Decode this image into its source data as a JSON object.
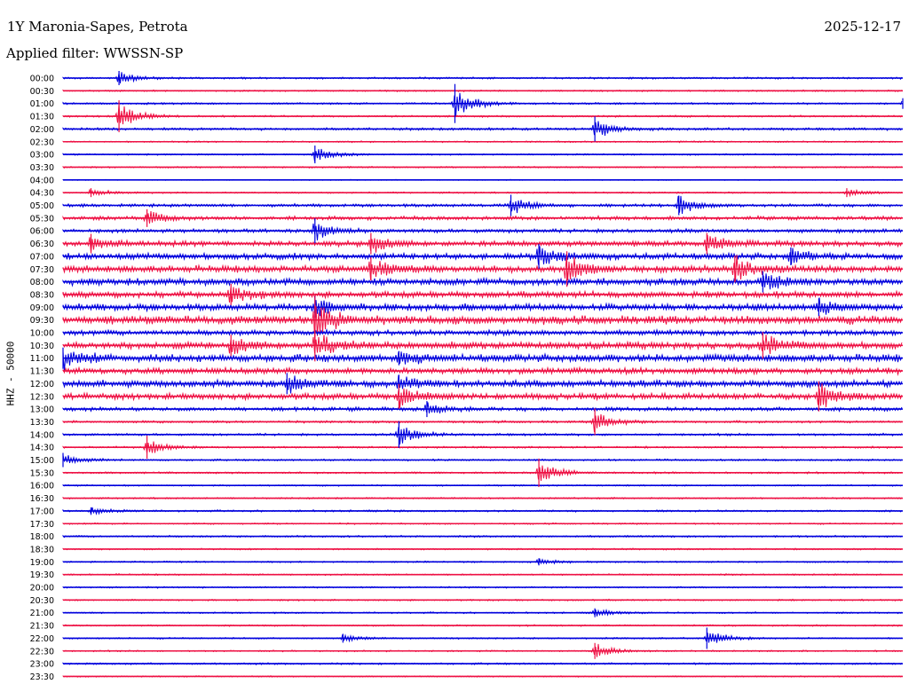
{
  "header": {
    "station": "1Y Maronia-Sapes, Petrota",
    "date": "2025-12-17",
    "filter": "Applied filter: WWSSN-SP"
  },
  "chart_data": {
    "type": "line",
    "subtype": "helicorder",
    "title": "1Y Maronia-Sapes, Petrota",
    "ylabel": "HHZ - 50000",
    "xlabel": "",
    "colors": {
      "even_row": "#0000dd",
      "odd_row": "#ee1144"
    },
    "row_labels": [
      "00:00",
      "00:30",
      "01:00",
      "01:30",
      "02:00",
      "02:30",
      "03:00",
      "03:30",
      "04:00",
      "04:30",
      "05:00",
      "05:30",
      "06:00",
      "06:30",
      "07:00",
      "07:30",
      "08:00",
      "08:30",
      "09:00",
      "09:30",
      "10:00",
      "10:30",
      "11:00",
      "11:30",
      "12:00",
      "12:30",
      "13:00",
      "13:30",
      "14:00",
      "14:30",
      "15:00",
      "15:30",
      "16:00",
      "16:30",
      "17:00",
      "17:30",
      "18:00",
      "18:30",
      "19:00",
      "19:30",
      "20:00",
      "20:30",
      "21:00",
      "21:30",
      "22:00",
      "22:30",
      "23:00",
      "23:30"
    ],
    "minutes_per_row": 30,
    "noise_level": [
      1.2,
      1.0,
      1.2,
      1.2,
      1.6,
      1.0,
      1.0,
      1.0,
      0.6,
      1.0,
      2.0,
      2.5,
      2.5,
      3.5,
      4.0,
      4.5,
      4.5,
      4.0,
      4.5,
      5.5,
      3.5,
      4.5,
      5.0,
      4.0,
      4.5,
      4.0,
      2.5,
      1.5,
      1.5,
      1.2,
      1.2,
      1.2,
      1.0,
      1.0,
      1.2,
      1.0,
      1.2,
      1.0,
      1.0,
      1.0,
      1.0,
      1.0,
      1.0,
      1.0,
      1.0,
      1.0,
      1.2,
      0.8
    ],
    "events": [
      {
        "row": 0,
        "minute": 2,
        "amplitude": 8
      },
      {
        "row": 2,
        "minute": 14,
        "amplitude": 22
      },
      {
        "row": 2,
        "minute": 30,
        "amplitude": 6
      },
      {
        "row": 3,
        "minute": 2,
        "amplitude": 18
      },
      {
        "row": 4,
        "minute": 19,
        "amplitude": 14
      },
      {
        "row": 6,
        "minute": 9,
        "amplitude": 10
      },
      {
        "row": 9,
        "minute": 1,
        "amplitude": 5
      },
      {
        "row": 9,
        "minute": 28,
        "amplitude": 5
      },
      {
        "row": 10,
        "minute": 16,
        "amplitude": 12
      },
      {
        "row": 10,
        "minute": 22,
        "amplitude": 11
      },
      {
        "row": 11,
        "minute": 3,
        "amplitude": 10
      },
      {
        "row": 12,
        "minute": 9,
        "amplitude": 14
      },
      {
        "row": 13,
        "minute": 1,
        "amplitude": 11
      },
      {
        "row": 13,
        "minute": 11,
        "amplitude": 12
      },
      {
        "row": 13,
        "minute": 23,
        "amplitude": 12
      },
      {
        "row": 14,
        "minute": 17,
        "amplitude": 14
      },
      {
        "row": 14,
        "minute": 26,
        "amplitude": 10
      },
      {
        "row": 15,
        "minute": 11,
        "amplitude": 13
      },
      {
        "row": 15,
        "minute": 18,
        "amplitude": 20
      },
      {
        "row": 15,
        "minute": 24,
        "amplitude": 15
      },
      {
        "row": 16,
        "minute": 25,
        "amplitude": 12
      },
      {
        "row": 17,
        "minute": 6,
        "amplitude": 12
      },
      {
        "row": 18,
        "minute": 9,
        "amplitude": 12
      },
      {
        "row": 18,
        "minute": 27,
        "amplitude": 10
      },
      {
        "row": 19,
        "minute": 9,
        "amplitude": 26
      },
      {
        "row": 21,
        "minute": 6,
        "amplitude": 12
      },
      {
        "row": 21,
        "minute": 9,
        "amplitude": 18
      },
      {
        "row": 21,
        "minute": 25,
        "amplitude": 15
      },
      {
        "row": 22,
        "minute": 0,
        "amplitude": 12
      },
      {
        "row": 22,
        "minute": 12,
        "amplitude": 8
      },
      {
        "row": 24,
        "minute": 8,
        "amplitude": 12
      },
      {
        "row": 24,
        "minute": 12,
        "amplitude": 10
      },
      {
        "row": 25,
        "minute": 12,
        "amplitude": 14
      },
      {
        "row": 25,
        "minute": 27,
        "amplitude": 17
      },
      {
        "row": 26,
        "minute": 13,
        "amplitude": 9
      },
      {
        "row": 27,
        "minute": 19,
        "amplitude": 15
      },
      {
        "row": 28,
        "minute": 12,
        "amplitude": 15
      },
      {
        "row": 29,
        "minute": 3,
        "amplitude": 13
      },
      {
        "row": 30,
        "minute": 0,
        "amplitude": 8
      },
      {
        "row": 31,
        "minute": 17,
        "amplitude": 16
      },
      {
        "row": 34,
        "minute": 1,
        "amplitude": 4
      },
      {
        "row": 38,
        "minute": 17,
        "amplitude": 4
      },
      {
        "row": 42,
        "minute": 19,
        "amplitude": 5
      },
      {
        "row": 44,
        "minute": 10,
        "amplitude": 5
      },
      {
        "row": 44,
        "minute": 23,
        "amplitude": 12
      },
      {
        "row": 45,
        "minute": 19,
        "amplitude": 9
      }
    ]
  }
}
